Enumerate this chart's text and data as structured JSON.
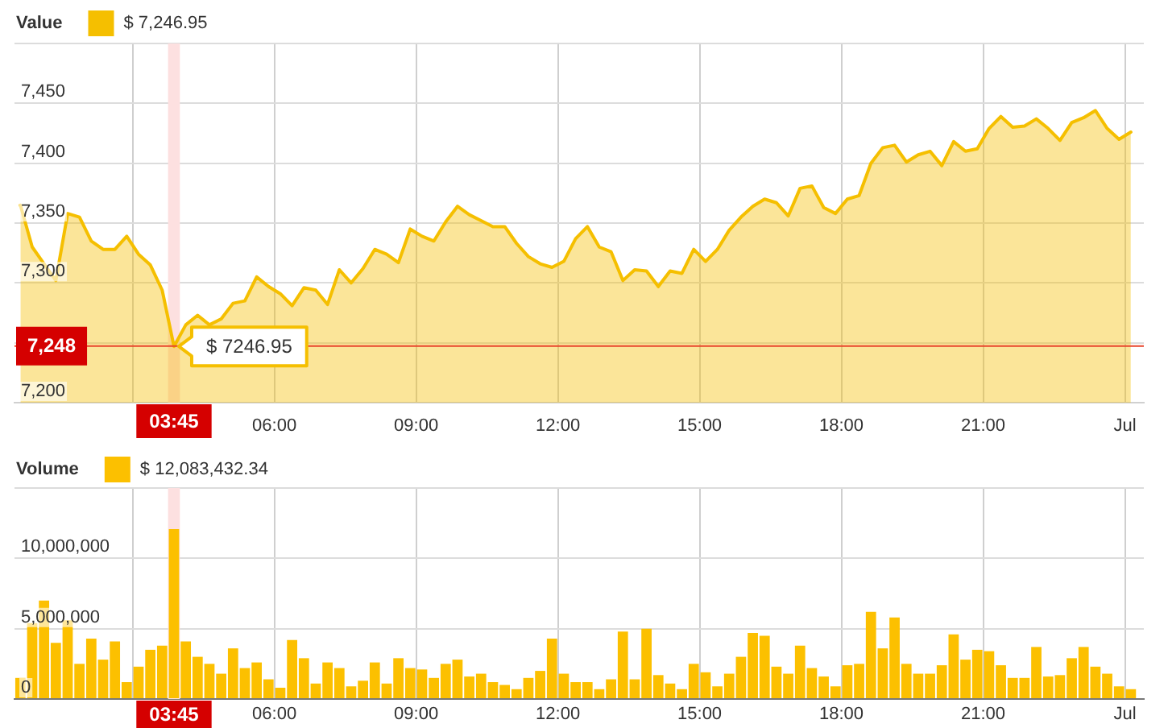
{
  "chart_data": [
    {
      "type": "area",
      "legend_title": "Value",
      "legend": "top left",
      "grid": true,
      "x": [
        0.625,
        0.875,
        1.125,
        1.375,
        1.625,
        1.875,
        2.125,
        2.375,
        2.625,
        2.875,
        3.125,
        3.375,
        3.625,
        3.875,
        4.125,
        4.375,
        4.625,
        4.875,
        5.125,
        5.375,
        5.625,
        5.875,
        6.125,
        6.375,
        6.625,
        6.875,
        7.125,
        7.375,
        7.625,
        7.875,
        8.125,
        8.375,
        8.625,
        8.875,
        9.125,
        9.375,
        9.625,
        9.875,
        10.125,
        10.375,
        10.625,
        10.875,
        11.125,
        11.375,
        11.625,
        11.875,
        12.125,
        12.375,
        12.625,
        12.875,
        13.125,
        13.375,
        13.625,
        13.875,
        14.125,
        14.375,
        14.625,
        14.875,
        15.125,
        15.375,
        15.625,
        15.875,
        16.125,
        16.375,
        16.625,
        16.875,
        17.125,
        17.375,
        17.625,
        17.875,
        18.125,
        18.375,
        18.625,
        18.875,
        19.125,
        19.375,
        19.625,
        19.875,
        20.125,
        20.375,
        20.625,
        20.875,
        21.125,
        21.375,
        21.625,
        21.875,
        22.125,
        22.375,
        22.625,
        22.875,
        23.125,
        23.375,
        23.625,
        23.875,
        24.125
      ],
      "series": [
        {
          "name": "$ 7,246.95",
          "color": "#f5bf00",
          "values": [
            7365,
            7330,
            7316,
            7302,
            7358,
            7355,
            7335,
            7328,
            7328,
            7339,
            7324,
            7315,
            7294,
            7246.95,
            7265,
            7273,
            7265,
            7270,
            7283,
            7285,
            7305,
            7297,
            7291,
            7281,
            7296,
            7294,
            7282,
            7311,
            7300,
            7312,
            7328,
            7324,
            7317,
            7345,
            7339,
            7335,
            7351,
            7364,
            7357,
            7352,
            7347,
            7347,
            7333,
            7322,
            7316,
            7313,
            7318,
            7337,
            7347,
            7330,
            7326,
            7302,
            7311,
            7310,
            7297,
            7310,
            7308,
            7328,
            7318,
            7328,
            7344,
            7355,
            7364,
            7370,
            7367,
            7356,
            7379,
            7381,
            7363,
            7358,
            7370,
            7373,
            7400,
            7413,
            7415,
            7401,
            7407,
            7410,
            7398,
            7418,
            7410,
            7412,
            7429,
            7439,
            7430,
            7431,
            7437,
            7429,
            7419,
            7434,
            7438,
            7444,
            7429,
            7420,
            7426
          ]
        }
      ],
      "xlim": [
        0.5,
        24.4
      ],
      "xticks": [
        {
          "value": 3,
          "label": null
        },
        {
          "value": 6,
          "label": "06:00"
        },
        {
          "value": 9,
          "label": "09:00"
        },
        {
          "value": 12,
          "label": "12:00"
        },
        {
          "value": 15,
          "label": "15:00"
        },
        {
          "value": 18,
          "label": "18:00"
        },
        {
          "value": 21,
          "label": "21:00"
        },
        {
          "value": 24,
          "label": "Jul"
        }
      ],
      "ylim": [
        7200,
        7500
      ],
      "yticks": [
        {
          "value": 7200,
          "label": "7,200"
        },
        {
          "value": 7250,
          "label": null
        },
        {
          "value": 7300,
          "label": "7,300"
        },
        {
          "value": 7350,
          "label": "7,350"
        },
        {
          "value": 7400,
          "label": "7,400"
        },
        {
          "value": 7450,
          "label": "7,450"
        },
        {
          "value": 7500,
          "label": null
        }
      ],
      "ref_lines": [
        {
          "axis": "y",
          "value": 7248,
          "label": "7,248",
          "color": "#e8452c"
        }
      ],
      "bands": [
        {
          "axis": "x",
          "from": 3.75,
          "to": 4,
          "label": "03:45",
          "color": "#fde0e0"
        }
      ],
      "annotations": [
        {
          "text": "$ 7246.95",
          "x": 3.875,
          "y": 7246.95
        }
      ]
    },
    {
      "type": "bar",
      "legend_title": "Volume",
      "legend": "top left",
      "grid": true,
      "x": [
        0.625,
        0.875,
        1.125,
        1.375,
        1.625,
        1.875,
        2.125,
        2.375,
        2.625,
        2.875,
        3.125,
        3.375,
        3.625,
        3.875,
        4.125,
        4.375,
        4.625,
        4.875,
        5.125,
        5.375,
        5.625,
        5.875,
        6.125,
        6.375,
        6.625,
        6.875,
        7.125,
        7.375,
        7.625,
        7.875,
        8.125,
        8.375,
        8.625,
        8.875,
        9.125,
        9.375,
        9.625,
        9.875,
        10.125,
        10.375,
        10.625,
        10.875,
        11.125,
        11.375,
        11.625,
        11.875,
        12.125,
        12.375,
        12.625,
        12.875,
        13.125,
        13.375,
        13.625,
        13.875,
        14.125,
        14.375,
        14.625,
        14.875,
        15.125,
        15.375,
        15.625,
        15.875,
        16.125,
        16.375,
        16.625,
        16.875,
        17.125,
        17.375,
        17.625,
        17.875,
        18.125,
        18.375,
        18.625,
        18.875,
        19.125,
        19.375,
        19.625,
        19.875,
        20.125,
        20.375,
        20.625,
        20.875,
        21.125,
        21.375,
        21.625,
        21.875,
        22.125,
        22.375,
        22.625,
        22.875,
        23.125,
        23.375,
        23.625,
        23.875,
        24.125
      ],
      "series": [
        {
          "name": "$ 12,083,432.34",
          "color": "#fcc000",
          "values": [
            1500000,
            5400000,
            7000000,
            4000000,
            5600000,
            2500000,
            4300000,
            2800000,
            4100000,
            1200000,
            2300000,
            3500000,
            3800000,
            12083432.34,
            4100000,
            3000000,
            2500000,
            1800000,
            3600000,
            2200000,
            2600000,
            1400000,
            800000,
            4200000,
            2900000,
            1100000,
            2600000,
            2200000,
            900000,
            1300000,
            2600000,
            1100000,
            2900000,
            2200000,
            2100000,
            1500000,
            2500000,
            2800000,
            1600000,
            1800000,
            1200000,
            1000000,
            700000,
            1500000,
            2000000,
            4300000,
            1800000,
            1200000,
            1200000,
            700000,
            1400000,
            4800000,
            1400000,
            5000000,
            1700000,
            1100000,
            700000,
            2500000,
            1900000,
            900000,
            1800000,
            3000000,
            4700000,
            4500000,
            2300000,
            1800000,
            3800000,
            2200000,
            1600000,
            900000,
            2400000,
            2500000,
            6200000,
            3600000,
            5800000,
            2500000,
            1800000,
            1800000,
            2400000,
            4600000,
            2800000,
            3500000,
            3400000,
            2400000,
            1500000,
            1500000,
            3700000,
            1600000,
            1700000,
            2900000,
            3700000,
            2300000,
            1800000,
            900000,
            700000
          ]
        }
      ],
      "xlim": [
        0.5,
        24.4
      ],
      "xticks": [
        {
          "value": 3,
          "label": null
        },
        {
          "value": 6,
          "label": "06:00"
        },
        {
          "value": 9,
          "label": "09:00"
        },
        {
          "value": 12,
          "label": "12:00"
        },
        {
          "value": 15,
          "label": "15:00"
        },
        {
          "value": 18,
          "label": "18:00"
        },
        {
          "value": 21,
          "label": "21:00"
        },
        {
          "value": 24,
          "label": "Jul"
        }
      ],
      "ylim": [
        0,
        15000000
      ],
      "yticks": [
        0,
        {
          "value": 5000000,
          "label": "5,000,000"
        },
        {
          "value": 10000000,
          "label": "10,000,000"
        },
        {
          "value": 15000000,
          "label": null
        }
      ],
      "bands": [
        {
          "axis": "x",
          "from": 3.75,
          "to": 4,
          "label": "03:45",
          "color": "#fde0e0"
        }
      ]
    }
  ]
}
